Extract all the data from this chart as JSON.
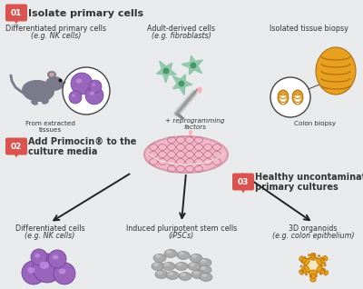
{
  "bg_color": "#e8eaec",
  "badge_color": "#d9534f",
  "badge_text_color": "#ffffff",
  "text_color": "#333333",
  "arrow_color": "#222222",
  "step1_badge": "01",
  "step1_label": "Isolate primary cells",
  "step2_badge": "02",
  "step2_label": "Add Primocin® to the\nculture media",
  "step3_badge": "03",
  "step3_label": "Healthy uncontaminated\nprimary cultures",
  "col1_line1": "Differentiated primary cells",
  "col1_line2": "(e.g. NK cells)",
  "col1_sub": "From extracted\ntissues",
  "col2_line1": "Adult-derived cells",
  "col2_line2": "(e.g. fibroblasts)",
  "col2_sub": "+ reprogramming\nfactors",
  "col3_line1": "Isolated tissue biopsy",
  "col3_sub": "Colon biopsy",
  "out1_line1": "Differentiated cells",
  "out1_line2": "(e.g. NK cells)",
  "out2_line1": "Induced pluripotent stem cells",
  "out2_line2": "(iPSCs)",
  "out3_line1": "3D organoids",
  "out3_line2": "(e.g. colon epithelium)",
  "mouse_color": "#7a7a8a",
  "mouse_ear_inner": "#c9a0a0",
  "nk_color": "#9966bb",
  "nk_highlight": "#cc99ee",
  "fibroblast_color": "#88c4a4",
  "fibroblast_nucleus": "#449966",
  "colon_color": "#e8a020",
  "colon_inner": "#fdf0d0",
  "petri_fill": "#f2b8c8",
  "petri_rim": "#d89aaa",
  "petri_cell": "#c07890",
  "ipsc_color": "#aaaaaa",
  "ipsc_edge": "#888888",
  "ipsc_highlight": "#cccccc",
  "organoid_fill": "#e8a020",
  "organoid_inner": "#f5e8c0",
  "organoid_edge": "#c07800"
}
